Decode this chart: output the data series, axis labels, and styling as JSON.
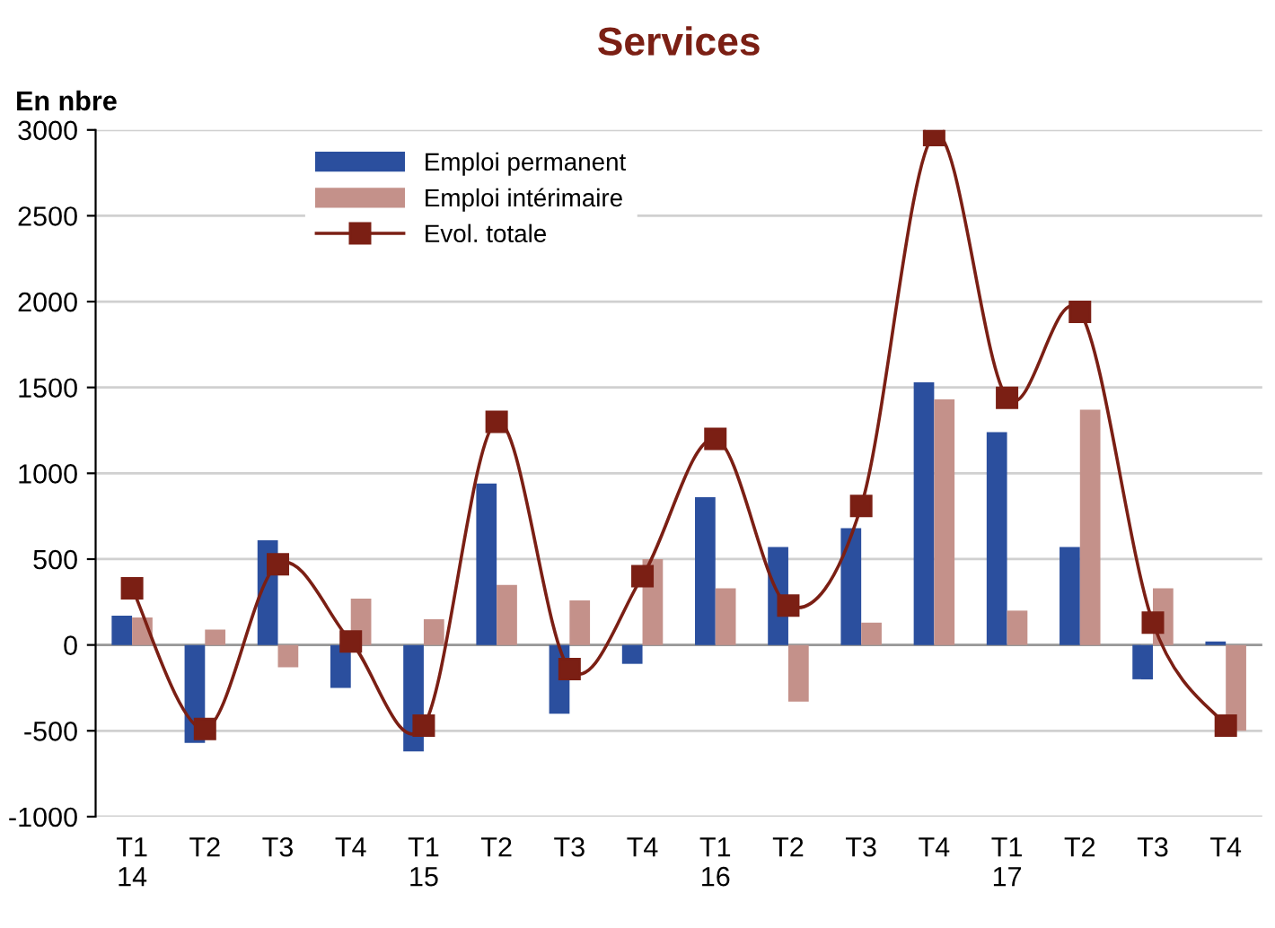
{
  "chart_data": {
    "type": "bar",
    "title": "Services",
    "ylabel": "En nbre",
    "categories": [
      "T1\n14",
      "T2",
      "T3",
      "T4",
      "T1\n15",
      "T2",
      "T3",
      "T4",
      "T1\n16",
      "T2",
      "T3",
      "T4",
      "T1\n17",
      "T2",
      "T3",
      "T4"
    ],
    "series": [
      {
        "name": "Emploi permanent",
        "color": "#2b4f9e",
        "values": [
          170,
          -570,
          610,
          -250,
          -620,
          940,
          -400,
          -110,
          860,
          570,
          680,
          1530,
          1240,
          570,
          -200,
          20
        ]
      },
      {
        "name": "Emploi intérimaire",
        "color": "#c4918a",
        "values": [
          160,
          90,
          -130,
          270,
          150,
          350,
          260,
          500,
          330,
          -330,
          130,
          1430,
          200,
          1370,
          330,
          -500
        ]
      },
      {
        "name": "Evol. totale",
        "type": "line",
        "color": "#7b1f14",
        "marker": "square",
        "values": [
          330,
          -490,
          470,
          20,
          -470,
          1300,
          -140,
          400,
          1200,
          230,
          810,
          2970,
          1440,
          1940,
          130,
          -470
        ]
      }
    ],
    "ylim": [
      -1000,
      3000
    ],
    "yticks": [
      -1000,
      -500,
      0,
      500,
      1000,
      1500,
      2000,
      2500,
      3000
    ],
    "grid": "y",
    "legend": "top left"
  }
}
